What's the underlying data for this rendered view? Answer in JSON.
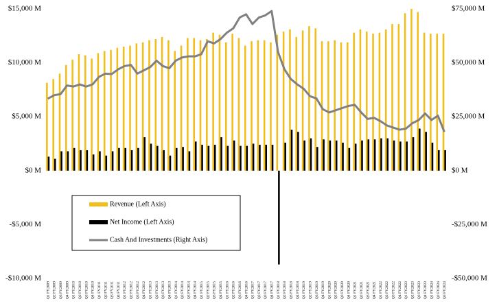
{
  "chart_data": {
    "type": "bar_line_dual_axis",
    "categories": [
      "Q1 FY2009",
      "Q2 FY2009",
      "Q3 FY2009",
      "Q4 FY2009",
      "Q1 FY2010",
      "Q2 FY2010",
      "Q3 FY2010",
      "Q4 FY2010",
      "Q1 FY2011",
      "Q2 FY2011",
      "Q3 FY2011",
      "Q4 FY2011",
      "Q1 FY2012",
      "Q2 FY2012",
      "Q3 FY2012",
      "Q4 FY2012",
      "Q1 FY2013",
      "Q2 FY2013",
      "Q3 FY2013",
      "Q4 FY2013",
      "Q1 FY2014",
      "Q2 FY2014",
      "Q3 FY2014",
      "Q4 FY2014",
      "Q1 FY2015",
      "Q2 FY2015",
      "Q3 FY2015",
      "Q4 FY2015",
      "Q1 FY2016",
      "Q2 FY2016",
      "Q3 FY2016",
      "Q4 FY2016",
      "Q1 FY2017",
      "Q2 FY2017",
      "Q3 FY2017",
      "Q4 FY2017",
      "Q1 FY2018",
      "Q2 FY2018",
      "Q3 FY2018",
      "Q4 FY2018",
      "Q1 FY2019",
      "Q2 FY2019",
      "Q3 FY2019",
      "Q4 FY2019",
      "Q1 FY2020",
      "Q2 FY2020",
      "Q3 FY2020",
      "Q4 FY2020",
      "Q1 FY2021",
      "Q2 FY2021",
      "Q3 FY2021",
      "Q4 FY2021",
      "Q1 FY2022",
      "Q2 FY2022",
      "Q3 FY2022",
      "Q4 FY2022",
      "Q1 FY2023",
      "Q2 FY2023",
      "Q3 FY2023",
      "Q4 FY2023",
      "Q1 FY2024",
      "Q2 FY2024",
      "Q3 FY2024"
    ],
    "series": [
      {
        "name": "Revenue (Left Axis)",
        "color": "#f2be1a",
        "kind": "bar",
        "values": [
          8150,
          8500,
          9000,
          9800,
          10300,
          10800,
          10700,
          10400,
          10900,
          11100,
          11200,
          11400,
          11500,
          11600,
          11800,
          11900,
          12100,
          12200,
          12400,
          12100,
          11100,
          11600,
          12300,
          12300,
          12100,
          12200,
          12800,
          12600,
          11900,
          12700,
          12300,
          11600,
          12000,
          12100,
          12100,
          11900,
          12600,
          12900,
          13100,
          12400,
          13000,
          13400,
          13200,
          12000,
          12000,
          12100,
          11900,
          11900,
          12800,
          13100,
          12900,
          12700,
          12800,
          13100,
          13600,
          13600,
          14600,
          15000,
          14700,
          12800,
          12700,
          12700,
          12700
        ]
      },
      {
        "name": "Net Income (Left Axis)",
        "color": "#000000",
        "kind": "bar",
        "values": [
          1300,
          1100,
          1800,
          1800,
          2100,
          1900,
          1900,
          1500,
          1800,
          1400,
          1800,
          2100,
          2100,
          1900,
          2100,
          3100,
          2500,
          2300,
          1900,
          1400,
          2100,
          2200,
          1800,
          2700,
          2400,
          2300,
          2400,
          3100,
          2300,
          2800,
          2300,
          2300,
          2500,
          2400,
          2400,
          2400,
          -8700,
          2600,
          3800,
          3600,
          2800,
          3000,
          2200,
          2900,
          2800,
          2800,
          2600,
          2100,
          2500,
          2800,
          2900,
          2900,
          3000,
          3000,
          2800,
          2700,
          2700,
          3100,
          3900,
          3600,
          2600,
          1900,
          1900
        ]
      },
      {
        "name": "Cash And Investments (Right Axis)",
        "color": "#808080",
        "kind": "line",
        "axis": "y2",
        "values": [
          33400,
          35000,
          35500,
          39500,
          39000,
          40000,
          39000,
          40000,
          43500,
          45000,
          44800,
          47000,
          48500,
          49000,
          45000,
          46500,
          48000,
          51000,
          48500,
          47500,
          51000,
          52500,
          53000,
          53000,
          54000,
          60000,
          59000,
          61000,
          64000,
          66000,
          71000,
          72500,
          68000,
          71000,
          72000,
          74000,
          55000,
          47000,
          42500,
          40000,
          38000,
          34500,
          33500,
          28500,
          27000,
          28000,
          29000,
          30000,
          30500,
          27000,
          24000,
          24500,
          23000,
          21000,
          20000,
          19000,
          19500,
          22000,
          23500,
          26500,
          23500,
          25500,
          18000
        ]
      }
    ],
    "ylim": [
      -10000,
      15000
    ],
    "yticks": [
      {
        "value": -10000,
        "label": "-$10,000 M"
      },
      {
        "value": -5000,
        "label": "-$5,000 M"
      },
      {
        "value": 0,
        "label": "$0 M"
      },
      {
        "value": 5000,
        "label": "$5,000 M"
      },
      {
        "value": 10000,
        "label": "$10,000 M"
      },
      {
        "value": 15000,
        "label": "$15,000 M"
      }
    ],
    "y2lim": [
      -50000,
      75000
    ],
    "y2ticks": [
      {
        "value": -50000,
        "label": "-$50,000 M"
      },
      {
        "value": -25000,
        "label": "-$25,000 M"
      },
      {
        "value": 0,
        "label": "$0 M"
      },
      {
        "value": 25000,
        "label": "$25,000 M"
      },
      {
        "value": 50000,
        "label": "$50,000 M"
      },
      {
        "value": 75000,
        "label": "$75,000 M"
      }
    ],
    "grid": false
  }
}
